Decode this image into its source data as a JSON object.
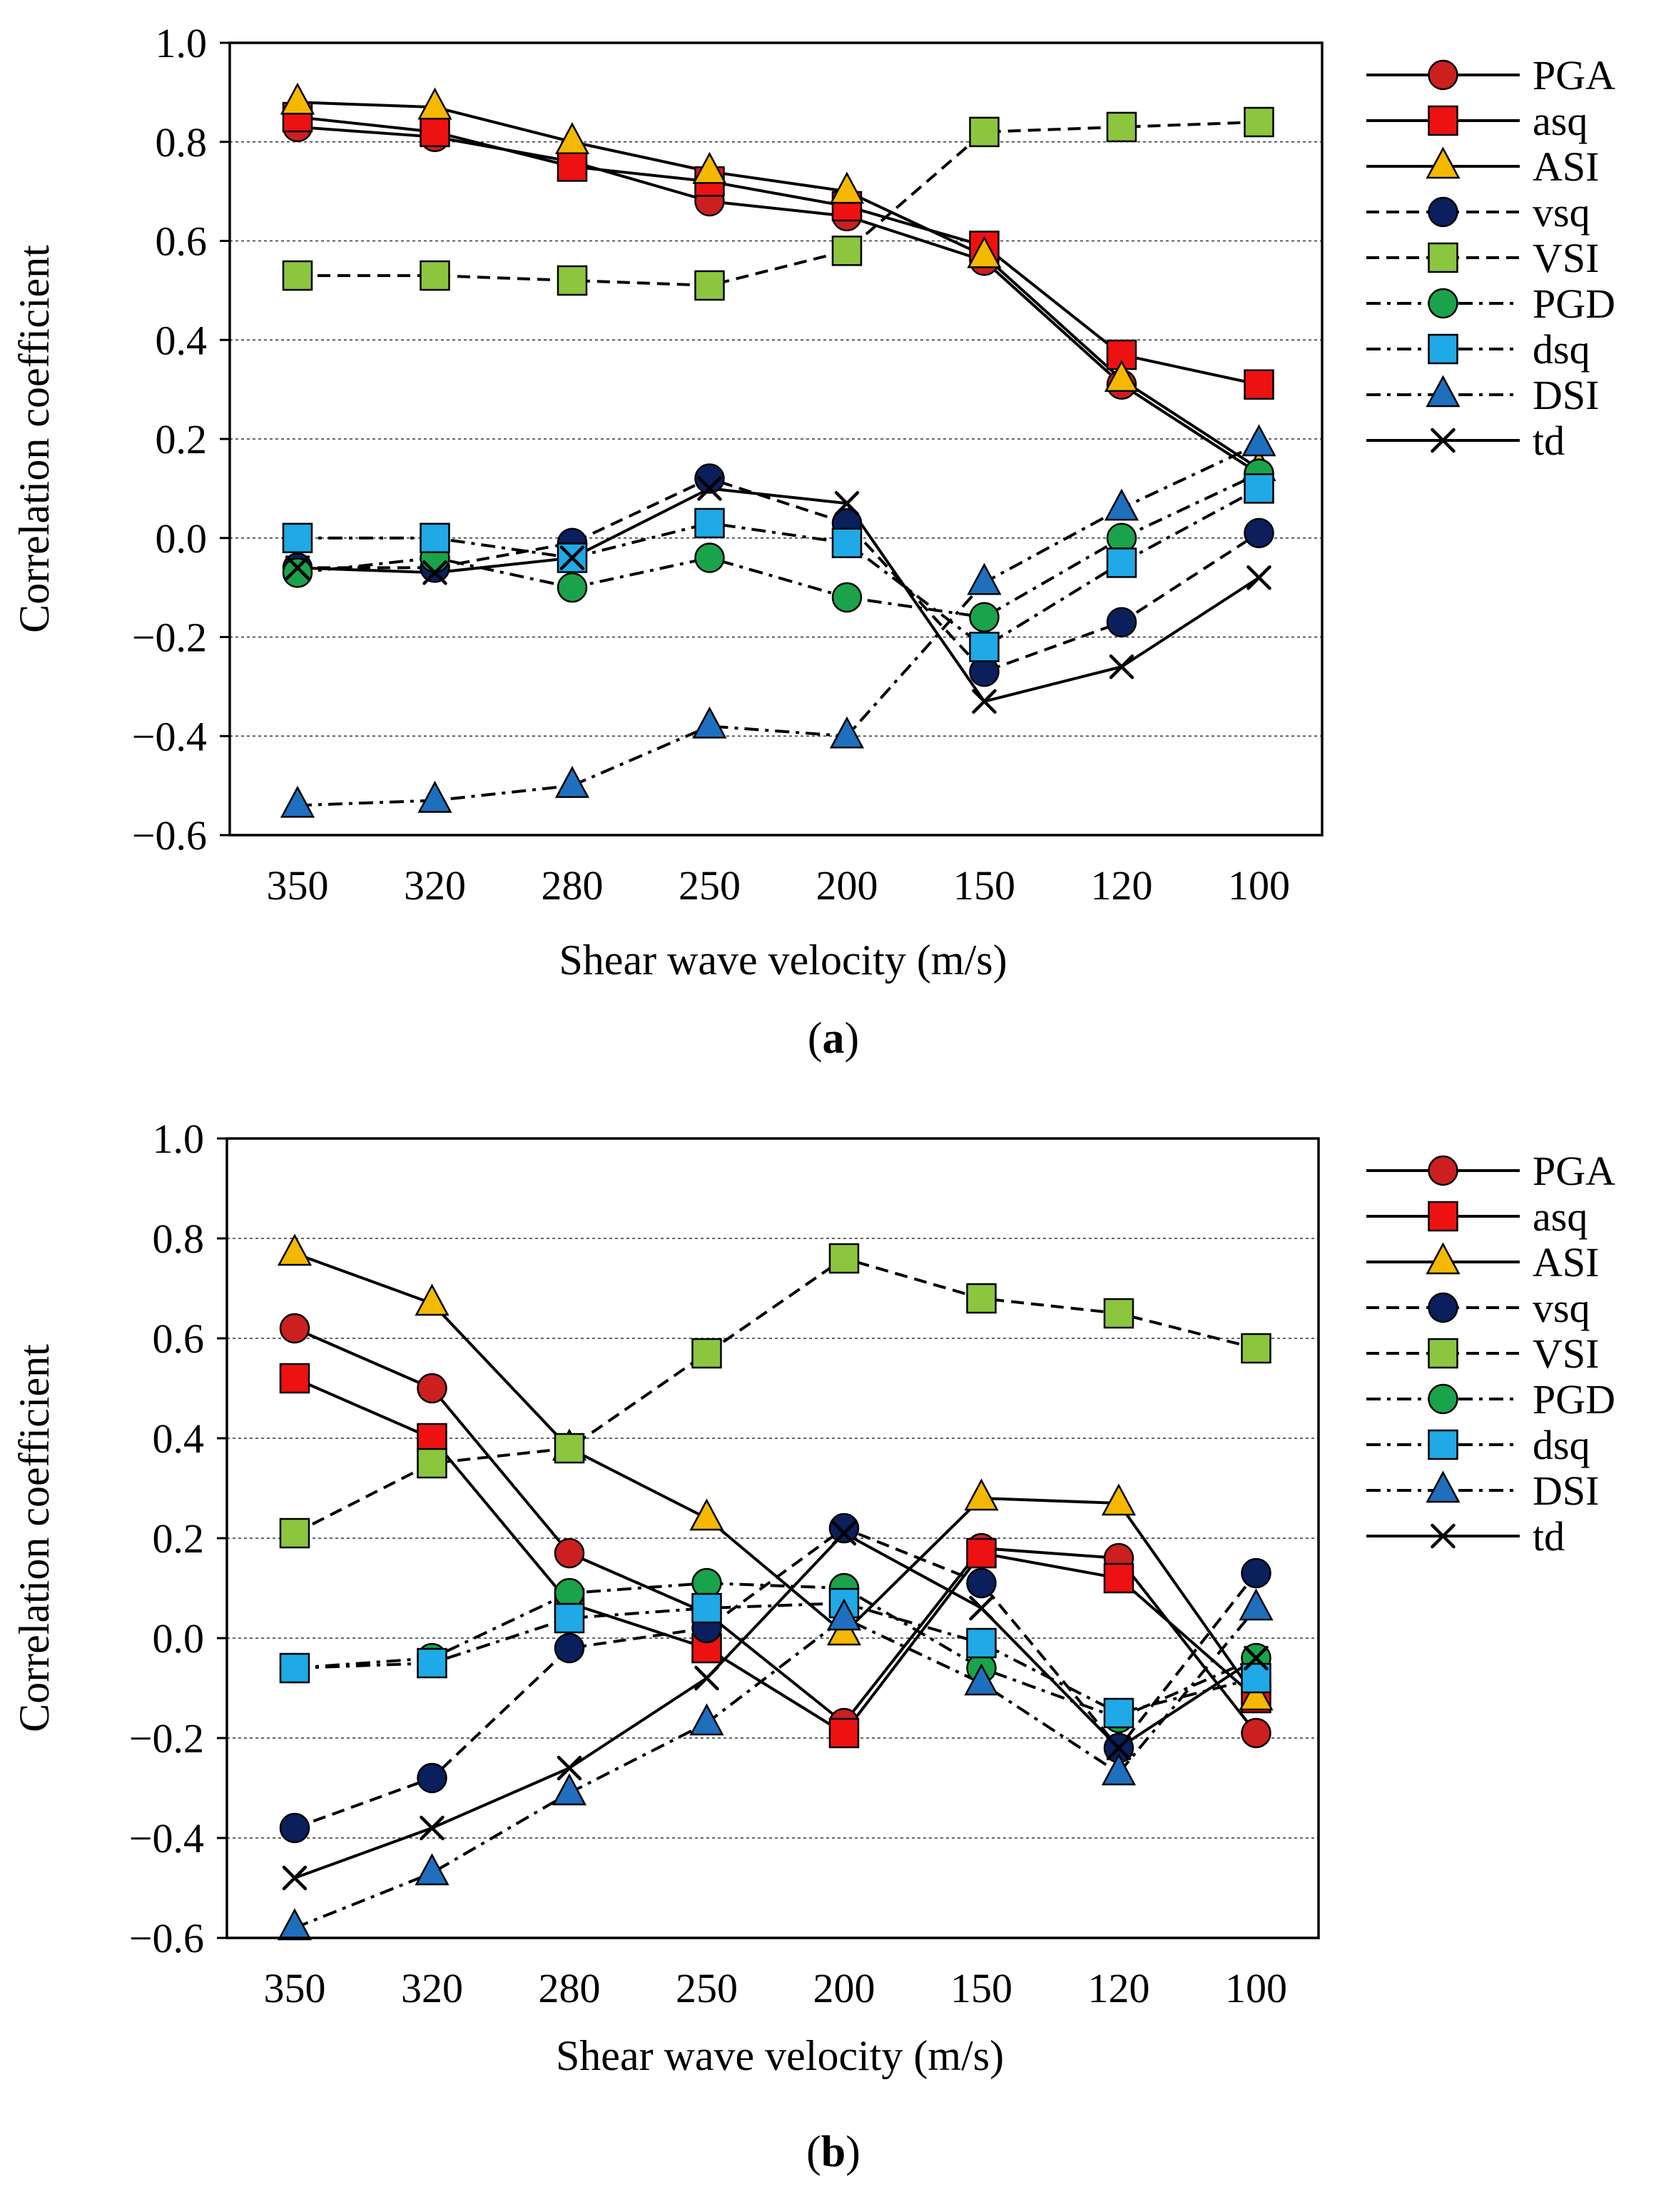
{
  "chart_data": [
    {
      "type": "line",
      "panel_label": "a",
      "xlabel": "Shear wave velocity (m/s)",
      "ylabel": "Correlation coefficient",
      "ylim": [
        -0.6,
        1.0
      ],
      "yticks": [
        "1.0",
        "0.8",
        "0.6",
        "0.4",
        "0.2",
        "0.0",
        "−0.2",
        "−0.4",
        "−0.6"
      ],
      "categories": [
        "350",
        "320",
        "280",
        "250",
        "200",
        "150",
        "120",
        "100"
      ],
      "grid": "horizontal dotted at 0.8, 0.6, 0.4, 0.2, 0.0, -0.2, -0.4",
      "legend_position": "right",
      "series": [
        {
          "name": "PGA",
          "values": [
            0.83,
            0.81,
            0.76,
            0.68,
            0.65,
            0.56,
            0.31,
            0.13
          ],
          "color": "#cc1f1f",
          "marker": "circle",
          "dash": "solid"
        },
        {
          "name": "asq",
          "values": [
            0.85,
            0.82,
            0.75,
            0.72,
            0.67,
            0.59,
            0.37,
            0.31
          ],
          "color": "#ee1111",
          "marker": "square",
          "dash": "solid"
        },
        {
          "name": "ASI",
          "values": [
            0.88,
            0.87,
            0.8,
            0.74,
            0.7,
            0.57,
            0.32,
            0.14
          ],
          "color": "#f5b800",
          "marker": "triangle",
          "dash": "solid"
        },
        {
          "name": "vsq",
          "values": [
            -0.06,
            -0.06,
            -0.01,
            0.12,
            0.03,
            -0.27,
            -0.17,
            0.01
          ],
          "color": "#0a1f5c",
          "marker": "circle",
          "dash": "dash"
        },
        {
          "name": "VSI",
          "values": [
            0.53,
            0.53,
            0.52,
            0.51,
            0.58,
            0.82,
            0.83,
            0.84
          ],
          "color": "#8cc63f",
          "marker": "square",
          "dash": "dash"
        },
        {
          "name": "PGD",
          "values": [
            -0.07,
            -0.04,
            -0.1,
            -0.04,
            -0.12,
            -0.16,
            0.0,
            0.13
          ],
          "color": "#1aa34a",
          "marker": "circle",
          "dash": "dashdot"
        },
        {
          "name": "dsq",
          "values": [
            0.0,
            0.0,
            -0.04,
            0.03,
            -0.01,
            -0.22,
            -0.05,
            0.1
          ],
          "color": "#1fa9e6",
          "marker": "square",
          "dash": "dashdot"
        },
        {
          "name": "DSI",
          "values": [
            -0.54,
            -0.53,
            -0.5,
            -0.38,
            -0.4,
            -0.09,
            0.06,
            0.19
          ],
          "color": "#1f6fbf",
          "marker": "triangle",
          "dash": "dashdot"
        },
        {
          "name": "td",
          "values": [
            -0.06,
            -0.07,
            -0.04,
            0.1,
            0.07,
            -0.33,
            -0.26,
            -0.08
          ],
          "color": "#000000",
          "marker": "x",
          "dash": "solid"
        }
      ]
    },
    {
      "type": "line",
      "panel_label": "b",
      "xlabel": "Shear wave velocity (m/s)",
      "ylabel": "Correlation coefficient",
      "ylim": [
        -0.6,
        1.0
      ],
      "yticks": [
        "1.0",
        "0.8",
        "0.6",
        "0.4",
        "0.2",
        "0.0",
        "−0.2",
        "−0.4",
        "−0.6"
      ],
      "categories": [
        "350",
        "320",
        "280",
        "250",
        "200",
        "150",
        "120",
        "100"
      ],
      "grid": "horizontal dotted at 0.8, 0.6, 0.4, 0.2, 0.0, -0.2, -0.4",
      "legend_position": "right",
      "series": [
        {
          "name": "PGA",
          "values": [
            0.62,
            0.5,
            0.17,
            0.05,
            -0.17,
            0.18,
            0.16,
            -0.19
          ],
          "color": "#cc1f1f",
          "marker": "circle",
          "dash": "solid"
        },
        {
          "name": "asq",
          "values": [
            0.52,
            0.4,
            0.07,
            -0.02,
            -0.19,
            0.17,
            0.12,
            -0.12
          ],
          "color": "#ee1111",
          "marker": "square",
          "dash": "solid"
        },
        {
          "name": "ASI",
          "values": [
            0.77,
            0.67,
            0.38,
            0.24,
            0.01,
            0.28,
            0.27,
            -0.12
          ],
          "color": "#f5b800",
          "marker": "triangle",
          "dash": "solid"
        },
        {
          "name": "vsq",
          "values": [
            -0.38,
            -0.28,
            -0.02,
            0.02,
            0.22,
            0.11,
            -0.22,
            0.13
          ],
          "color": "#0a1f5c",
          "marker": "circle",
          "dash": "dash"
        },
        {
          "name": "VSI",
          "values": [
            0.21,
            0.35,
            0.38,
            0.57,
            0.76,
            0.68,
            0.65,
            0.58
          ],
          "color": "#8cc63f",
          "marker": "square",
          "dash": "dash"
        },
        {
          "name": "PGD",
          "values": [
            -0.06,
            -0.04,
            0.09,
            0.11,
            0.1,
            -0.06,
            -0.16,
            -0.04
          ],
          "color": "#1aa34a",
          "marker": "circle",
          "dash": "dashdot"
        },
        {
          "name": "dsq",
          "values": [
            -0.06,
            -0.05,
            0.04,
            0.06,
            0.07,
            -0.01,
            -0.15,
            -0.08
          ],
          "color": "#1fa9e6",
          "marker": "square",
          "dash": "dashdot"
        },
        {
          "name": "DSI",
          "values": [
            -0.58,
            -0.47,
            -0.31,
            -0.17,
            0.04,
            -0.09,
            -0.27,
            0.06
          ],
          "color": "#1f6fbf",
          "marker": "triangle",
          "dash": "dashdot"
        },
        {
          "name": "td",
          "values": [
            -0.48,
            -0.38,
            -0.26,
            -0.08,
            0.21,
            0.06,
            -0.22,
            -0.04
          ],
          "color": "#000000",
          "marker": "x",
          "dash": "solid"
        }
      ]
    }
  ]
}
